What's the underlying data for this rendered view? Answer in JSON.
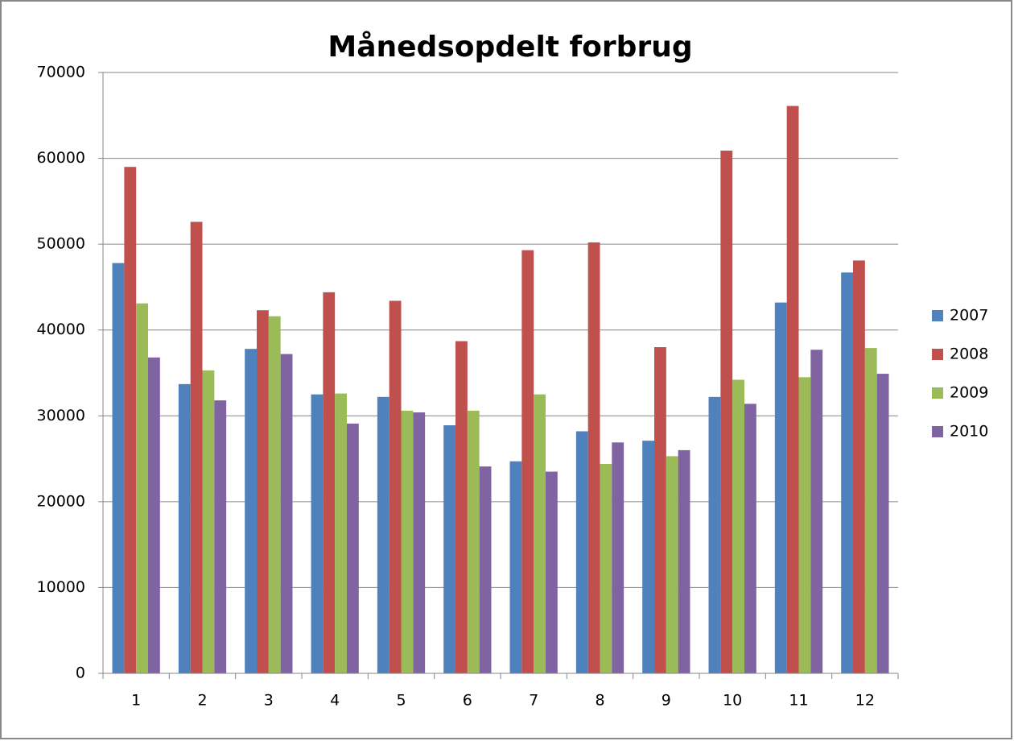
{
  "chart_data": {
    "type": "bar",
    "title": "Månedsopdelt forbrug",
    "categories": [
      "1",
      "2",
      "3",
      "4",
      "5",
      "6",
      "7",
      "8",
      "9",
      "10",
      "11",
      "12"
    ],
    "series": [
      {
        "name": "2007",
        "color": "#4f81bd",
        "values": [
          47800,
          33700,
          37800,
          32500,
          32200,
          28900,
          24700,
          28200,
          27100,
          32200,
          43200,
          46700
        ]
      },
      {
        "name": "2008",
        "color": "#c0504d",
        "values": [
          59000,
          52600,
          42300,
          44400,
          43400,
          38700,
          49300,
          50200,
          38000,
          60900,
          66100,
          48100
        ]
      },
      {
        "name": "2009",
        "color": "#9bbb59",
        "values": [
          43100,
          35300,
          41600,
          32600,
          30600,
          30600,
          32500,
          24400,
          25300,
          34200,
          34500,
          37900
        ]
      },
      {
        "name": "2010",
        "color": "#8064a2",
        "values": [
          36800,
          31800,
          37200,
          29100,
          30400,
          24100,
          23500,
          26900,
          26000,
          31400,
          37700,
          34900
        ]
      }
    ],
    "ylim": [
      0,
      70000
    ],
    "yticks": [
      0,
      10000,
      20000,
      30000,
      40000,
      50000,
      60000,
      70000
    ],
    "grid": true,
    "legend": "right"
  }
}
